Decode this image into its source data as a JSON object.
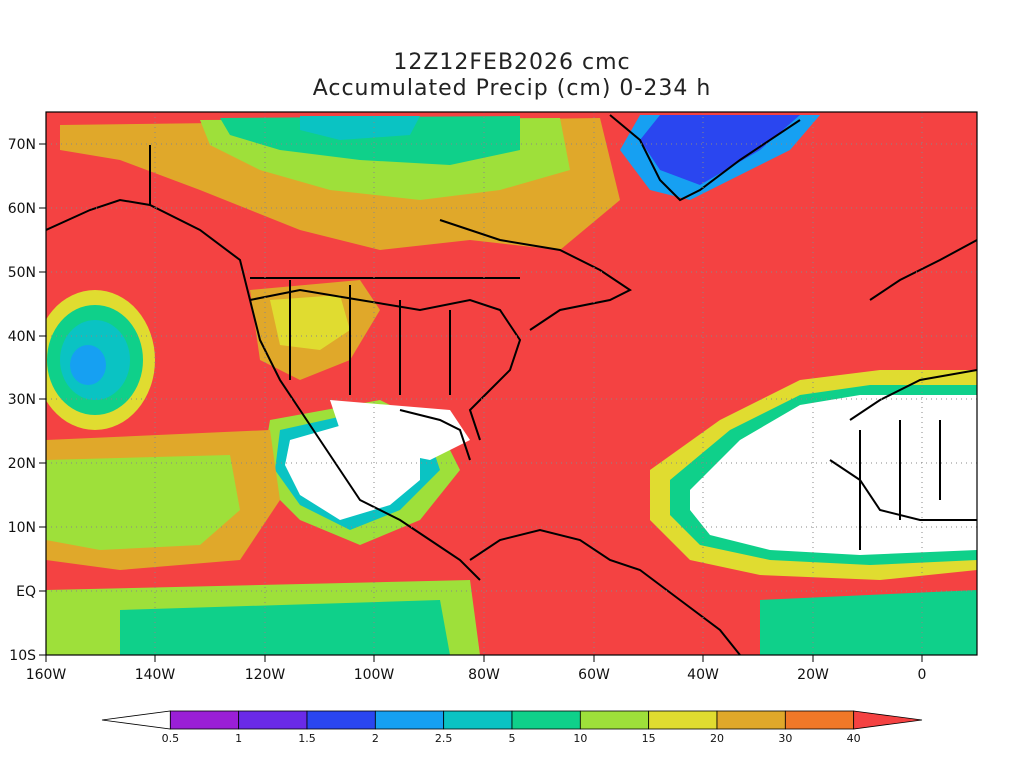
{
  "title": "12Z12FEB2026 cmc",
  "subtitle": "Accumulated Precip (cm) 0-234 h",
  "map": {
    "lon_range": [
      -160,
      10
    ],
    "lat_range": [
      -10,
      75
    ],
    "x_ticks": [
      "160W",
      "140W",
      "120W",
      "100W",
      "80W",
      "60W",
      "40W",
      "20W",
      "0"
    ],
    "y_ticks": [
      "10S",
      "EQ",
      "10N",
      "20N",
      "30N",
      "40N",
      "50N",
      "60N",
      "70N"
    ],
    "gridlines": "dotted"
  },
  "colorbar": {
    "labels": [
      "0.5",
      "1",
      "1.5",
      "2",
      "2.5",
      "5",
      "10",
      "15",
      "20",
      "30",
      "40"
    ],
    "colors": [
      "#ffffff",
      "#9a1fd6",
      "#6a2ae8",
      "#2a46f0",
      "#16a0f2",
      "#0ac3c3",
      "#0fd08a",
      "#9ee03a",
      "#e0dc30",
      "#e0a82a",
      "#f07828",
      "#f44242"
    ]
  }
}
